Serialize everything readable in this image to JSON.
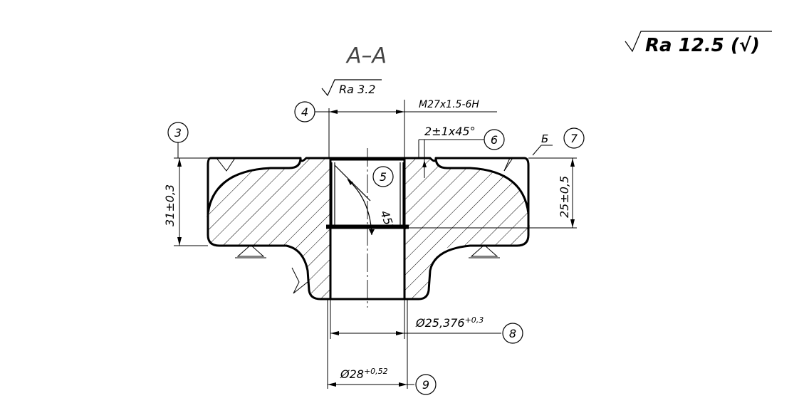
{
  "section_title": "A–A",
  "general_roughness": "Ra 12.5 (√)",
  "surface_finish": "Ra 3.2",
  "thread": "M27x1.5-6H",
  "chamfer": "2±1x45°",
  "angle": "45°",
  "height_left": "31±0,3",
  "height_right": "25±0,5",
  "bore_dia": "Ø25,376",
  "bore_tol": "+0,3",
  "outer_dia": "Ø28",
  "outer_tol": "+0,52",
  "datum_letter": "Б",
  "callouts": [
    "3",
    "4",
    "5",
    "6",
    "7",
    "8",
    "9"
  ]
}
